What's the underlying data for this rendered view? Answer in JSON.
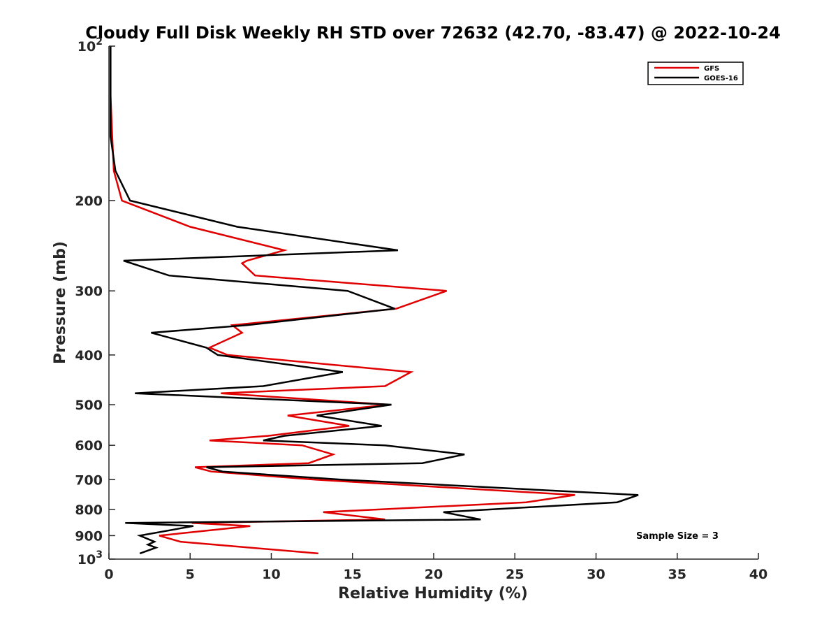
{
  "chart_data": {
    "type": "line",
    "title": "Cloudy Full Disk Weekly RH STD over 72632 (42.70, -83.47) @ 2022-10-24",
    "xlabel": "Relative Humidity (%)",
    "ylabel": "Pressure (mb)",
    "xlim": [
      0,
      40
    ],
    "ylim": [
      100,
      1000
    ],
    "y_scale": "log",
    "y_reversed": true,
    "grid": false,
    "legend_position": "top-right",
    "x_ticks": [
      "0",
      "5",
      "10",
      "15",
      "20",
      "25",
      "30",
      "35",
      "40"
    ],
    "y_ticks": [
      {
        "value": 100,
        "base": "10",
        "exp": "2"
      },
      {
        "value": 200,
        "label": "200"
      },
      {
        "value": 300,
        "label": "300"
      },
      {
        "value": 400,
        "label": "400"
      },
      {
        "value": 500,
        "label": "500"
      },
      {
        "value": 600,
        "label": "600"
      },
      {
        "value": 700,
        "label": "700"
      },
      {
        "value": 800,
        "label": "800"
      },
      {
        "value": 900,
        "label": "900"
      },
      {
        "value": 1000,
        "base": "10",
        "exp": "3"
      }
    ],
    "annotation": "Sample Size = 3",
    "series": [
      {
        "name": "GFS",
        "color": "#e00000",
        "points": [
          [
            0.1,
            100
          ],
          [
            0.1,
            125
          ],
          [
            0.2,
            150
          ],
          [
            0.3,
            175
          ],
          [
            0.8,
            200
          ],
          [
            5.0,
            225
          ],
          [
            10.8,
            250
          ],
          [
            8.5,
            262
          ],
          [
            8.2,
            265
          ],
          [
            9.0,
            280
          ],
          [
            20.8,
            300
          ],
          [
            17.7,
            325
          ],
          [
            7.6,
            350
          ],
          [
            8.2,
            362
          ],
          [
            6.2,
            387
          ],
          [
            7.3,
            400
          ],
          [
            18.6,
            432
          ],
          [
            17.0,
            460
          ],
          [
            6.9,
            475
          ],
          [
            17.2,
            500
          ],
          [
            11.0,
            525
          ],
          [
            14.8,
            550
          ],
          [
            9.8,
            575
          ],
          [
            6.2,
            587
          ],
          [
            11.9,
            600
          ],
          [
            13.8,
            625
          ],
          [
            12.3,
            650
          ],
          [
            5.3,
            662
          ],
          [
            6.3,
            675
          ],
          [
            12.7,
            700
          ],
          [
            28.7,
            750
          ],
          [
            25.7,
            775
          ],
          [
            13.2,
            810
          ],
          [
            17.0,
            837
          ],
          [
            5.1,
            850
          ],
          [
            8.7,
            862
          ],
          [
            3.1,
            900
          ],
          [
            4.4,
            925
          ],
          [
            12.9,
            975
          ]
        ]
      },
      {
        "name": "GOES-16",
        "color": "#000000",
        "points": [
          [
            0.1,
            100
          ],
          [
            0.1,
            125
          ],
          [
            0.1,
            150
          ],
          [
            0.4,
            175
          ],
          [
            1.3,
            200
          ],
          [
            7.9,
            225
          ],
          [
            17.8,
            250
          ],
          [
            0.9,
            262
          ],
          [
            3.7,
            280
          ],
          [
            14.7,
            300
          ],
          [
            17.6,
            325
          ],
          [
            8.5,
            350
          ],
          [
            2.6,
            362
          ],
          [
            6.0,
            387
          ],
          [
            6.7,
            400
          ],
          [
            14.4,
            432
          ],
          [
            9.5,
            460
          ],
          [
            1.6,
            475
          ],
          [
            17.4,
            500
          ],
          [
            12.8,
            525
          ],
          [
            16.8,
            550
          ],
          [
            10.8,
            575
          ],
          [
            9.5,
            587
          ],
          [
            17.0,
            600
          ],
          [
            21.9,
            625
          ],
          [
            19.3,
            650
          ],
          [
            6.0,
            662
          ],
          [
            7.0,
            675
          ],
          [
            14.3,
            700
          ],
          [
            32.6,
            750
          ],
          [
            31.3,
            775
          ],
          [
            20.6,
            810
          ],
          [
            22.9,
            837
          ],
          [
            1.0,
            850
          ],
          [
            5.2,
            862
          ],
          [
            1.9,
            900
          ],
          [
            2.8,
            925
          ],
          [
            2.4,
            937
          ],
          [
            2.9,
            950
          ],
          [
            1.9,
            975
          ]
        ]
      }
    ]
  }
}
